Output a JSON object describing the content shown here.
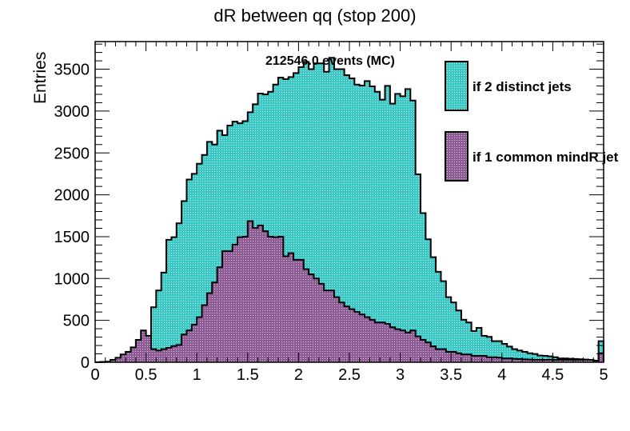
{
  "chart_data": {
    "type": "bar",
    "title": "dR between qq (stop 200)",
    "xlabel": "",
    "ylabel": "Entries",
    "xlim": [
      0,
      5
    ],
    "ylim": [
      0,
      3830
    ],
    "bin_width": 0.05,
    "x_ticks": [
      "0",
      "0.5",
      "1",
      "1.5",
      "2",
      "2.5",
      "3",
      "3.5",
      "4",
      "4.5",
      "5"
    ],
    "y_ticks": [
      "0",
      "500",
      "1000",
      "1500",
      "2000",
      "2500",
      "3000",
      "3500"
    ],
    "stats_text": "212546.0 events (MC)",
    "legend_placement": "top-right",
    "series": [
      {
        "name": "if 2 distinct jets",
        "color": "#3cc9c6",
        "values": [
          0,
          2,
          5,
          15,
          30,
          60,
          90,
          130,
          180,
          230,
          300,
          657,
          857,
          1071,
          1463,
          1494,
          1660,
          1925,
          2183,
          2250,
          2371,
          2476,
          2632,
          2600,
          2766,
          2712,
          2827,
          2874,
          2855,
          2880,
          2986,
          3081,
          3209,
          3200,
          3231,
          3317,
          3400,
          3381,
          3406,
          3454,
          3524,
          3588,
          3500,
          3570,
          3570,
          3470,
          3636,
          3500,
          3500,
          3429,
          3391,
          3317,
          3305,
          3359,
          3295,
          3231,
          3136,
          3301,
          3088,
          3206,
          3177,
          3263,
          3126,
          2244,
          1781,
          1469,
          1255,
          1080,
          968,
          777,
          714,
          618,
          507,
          475,
          373,
          411,
          315,
          303,
          252,
          252,
          220,
          188,
          156,
          140,
          124,
          108,
          99,
          80,
          76,
          70,
          60,
          45,
          45,
          42,
          39,
          36,
          32,
          29,
          13,
          252
        ]
      },
      {
        "name": "if 1 common mindR jet",
        "color": "#8e5c94",
        "values": [
          0,
          3,
          7,
          29,
          54,
          93,
          124,
          178,
          268,
          380,
          315,
          156,
          140,
          156,
          172,
          194,
          207,
          331,
          380,
          449,
          538,
          682,
          825,
          953,
          1134,
          1326,
          1326,
          1405,
          1494,
          1500,
          1686,
          1603,
          1635,
          1565,
          1500,
          1494,
          1500,
          1265,
          1303,
          1224,
          1224,
          1112,
          1049,
          1001,
          937,
          857,
          857,
          777,
          714,
          666,
          634,
          602,
          571,
          538,
          507,
          475,
          475,
          459,
          418,
          395,
          380,
          354,
          380,
          309,
          268,
          236,
          190,
          156,
          156,
          124,
          124,
          108,
          93,
          93,
          76,
          76,
          76,
          60,
          60,
          55,
          45,
          45,
          40,
          38,
          35,
          32,
          30,
          30,
          29,
          31,
          28,
          30,
          29,
          30,
          28,
          29,
          30,
          29,
          19,
          108
        ]
      }
    ]
  }
}
